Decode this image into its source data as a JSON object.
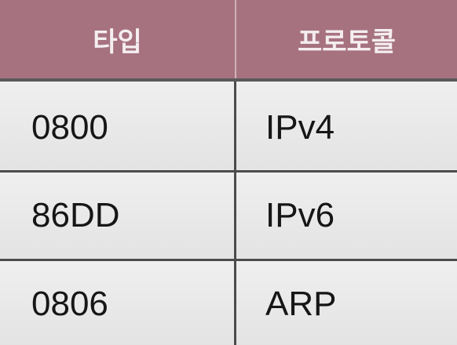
{
  "table": {
    "headers": {
      "type": "타입",
      "protocol": "프로토콜"
    },
    "rows": [
      {
        "type": "0800",
        "protocol": "IPv4"
      },
      {
        "type": "86DD",
        "protocol": "IPv6"
      },
      {
        "type": "0806",
        "protocol": "ARP"
      }
    ]
  },
  "colors": {
    "header_bg": "#a77280",
    "header_text": "#f4eef0",
    "grid": "#4b4b4b",
    "body_bg": "#eeeded"
  }
}
